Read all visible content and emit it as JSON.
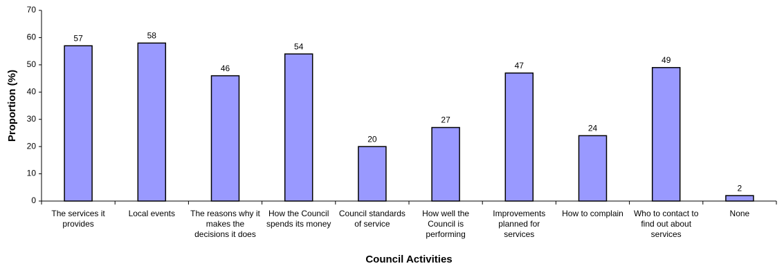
{
  "chart_data": {
    "type": "bar",
    "x_label": "Council Activities",
    "y_label": "Proportion (%)",
    "categories": [
      "The services it provides",
      "Local events",
      "The reasons why it makes the decisions it does",
      "How the Council spends its money",
      "Council standards of service",
      "How well the Council is performing",
      "Improvements planned for services",
      "How to complain",
      "Who to contact to find out about services",
      "None"
    ],
    "values": [
      57,
      58,
      46,
      54,
      20,
      27,
      47,
      24,
      49,
      2
    ],
    "color": "#9999ff",
    "ylim": [
      0,
      70
    ],
    "yticks": [
      0,
      10,
      20,
      30,
      40,
      50,
      60,
      70
    ],
    "grid": false
  }
}
